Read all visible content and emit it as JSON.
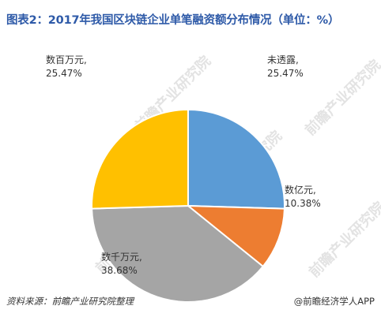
{
  "title": "图表2：2017年我国区块链企业单笔融资额分布情况（单位：%）",
  "footer": {
    "source": "资料来源：前瞻产业研究院整理",
    "credit": "@前瞻经济学人APP"
  },
  "watermark": "前瞻产业研究院",
  "chart_data": {
    "type": "pie",
    "title": "图表2：2017年我国区块链企业单笔融资额分布情况（单位：%）",
    "slices": [
      {
        "label": "未透露",
        "value": 25.47,
        "display": "25.47%",
        "color": "#5b9bd5"
      },
      {
        "label": "数亿元",
        "value": 10.38,
        "display": "10.38%",
        "color": "#ed7d31"
      },
      {
        "label": "数千万元",
        "value": 38.68,
        "display": "38.68%",
        "color": "#a5a5a5"
      },
      {
        "label": "数百万元",
        "value": 25.47,
        "display": "25.47%",
        "color": "#ffc000"
      }
    ]
  }
}
